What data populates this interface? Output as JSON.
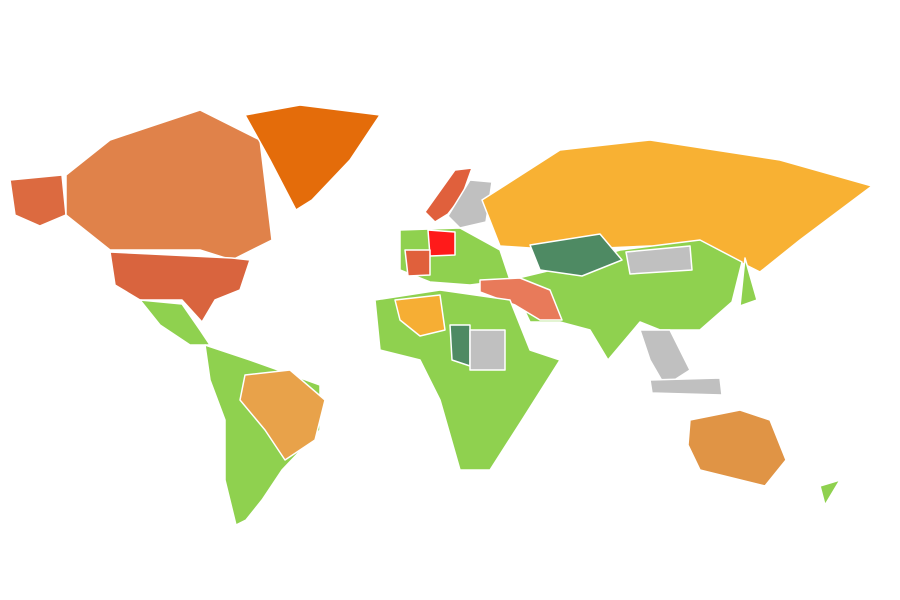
{
  "map": {
    "type": "choropleth-world",
    "background": "#ffffff",
    "border_color": "#ffffff",
    "no_data_color": "#c0c0c0",
    "regions": {
      "alaska": {
        "color": "#dc6a40"
      },
      "canada": {
        "color": "#e0824a"
      },
      "greenland": {
        "color": "#e46c0a"
      },
      "usa": {
        "color": "#d9643e"
      },
      "mexico": {
        "color": "#8fd14f"
      },
      "latin-america": {
        "color": "#8fd14f"
      },
      "brazil": {
        "color": "#e8a24a"
      },
      "europe": {
        "color": "#8fd14f"
      },
      "germany": {
        "color": "#ff1a1a"
      },
      "france": {
        "color": "#e0603c"
      },
      "norway": {
        "color": "#e0603c"
      },
      "scandinavia-east": {
        "color": "#c0c0c0"
      },
      "russia": {
        "color": "#f8b133"
      },
      "kazakhstan": {
        "color": "#4e8a63"
      },
      "mongolia": {
        "color": "#c0c0c0"
      },
      "asia": {
        "color": "#8fd14f"
      },
      "turkey-iran": {
        "color": "#e87a5a"
      },
      "southeast-asia": {
        "color": "#c0c0c0"
      },
      "indonesia": {
        "color": "#c0c0c0"
      },
      "japan": {
        "color": "#8fd14f"
      },
      "africa": {
        "color": "#8fd14f"
      },
      "algeria": {
        "color": "#f6ae34"
      },
      "chad": {
        "color": "#4e8a63"
      },
      "sudan": {
        "color": "#c0c0c0"
      },
      "australia": {
        "color": "#e09445"
      },
      "new-zealand": {
        "color": "#8fd14f"
      }
    }
  }
}
